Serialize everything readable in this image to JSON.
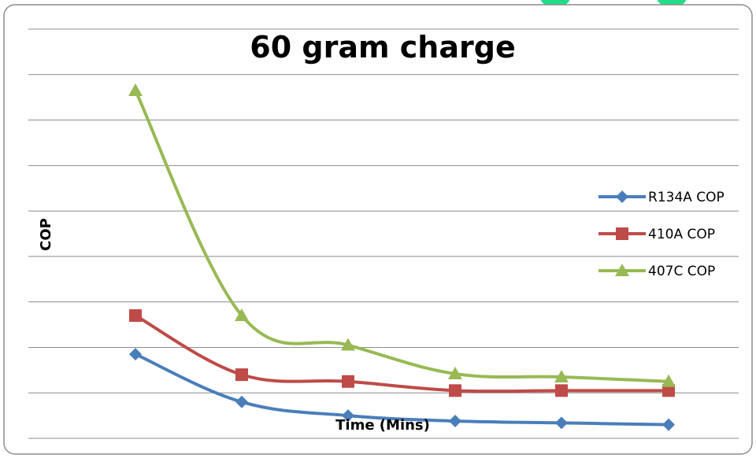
{
  "chart_data": {
    "type": "line",
    "title": "60 gram charge",
    "xlabel": "Time (Mins)",
    "ylabel": "COP",
    "x_tick_labels_shown": false,
    "y_tick_labels_shown": false,
    "grid": "horizontal",
    "legend_position": "right",
    "smooth": true,
    "ylim": [
      0,
      9
    ],
    "x": [
      1,
      2,
      3,
      4,
      5,
      6
    ],
    "series": [
      {
        "name": "R134A COP",
        "color": "#4a7ebb",
        "marker": "diamond",
        "values": [
          1.85,
          0.8,
          0.5,
          0.38,
          0.34,
          0.3
        ]
      },
      {
        "name": "410A COP",
        "color": "#be4b48",
        "marker": "square",
        "values": [
          2.7,
          1.4,
          1.25,
          1.05,
          1.05,
          1.05
        ]
      },
      {
        "name": "407C COP",
        "color": "#98b954",
        "marker": "triangle",
        "values": [
          7.65,
          2.7,
          2.05,
          1.42,
          1.35,
          1.25
        ]
      }
    ]
  },
  "page_title_text": "60 gram charge",
  "x_axis_text": "Time (Mins)",
  "y_axis_text": "COP",
  "legend": [
    "R134A COP",
    "410A COP",
    "407C COP"
  ]
}
